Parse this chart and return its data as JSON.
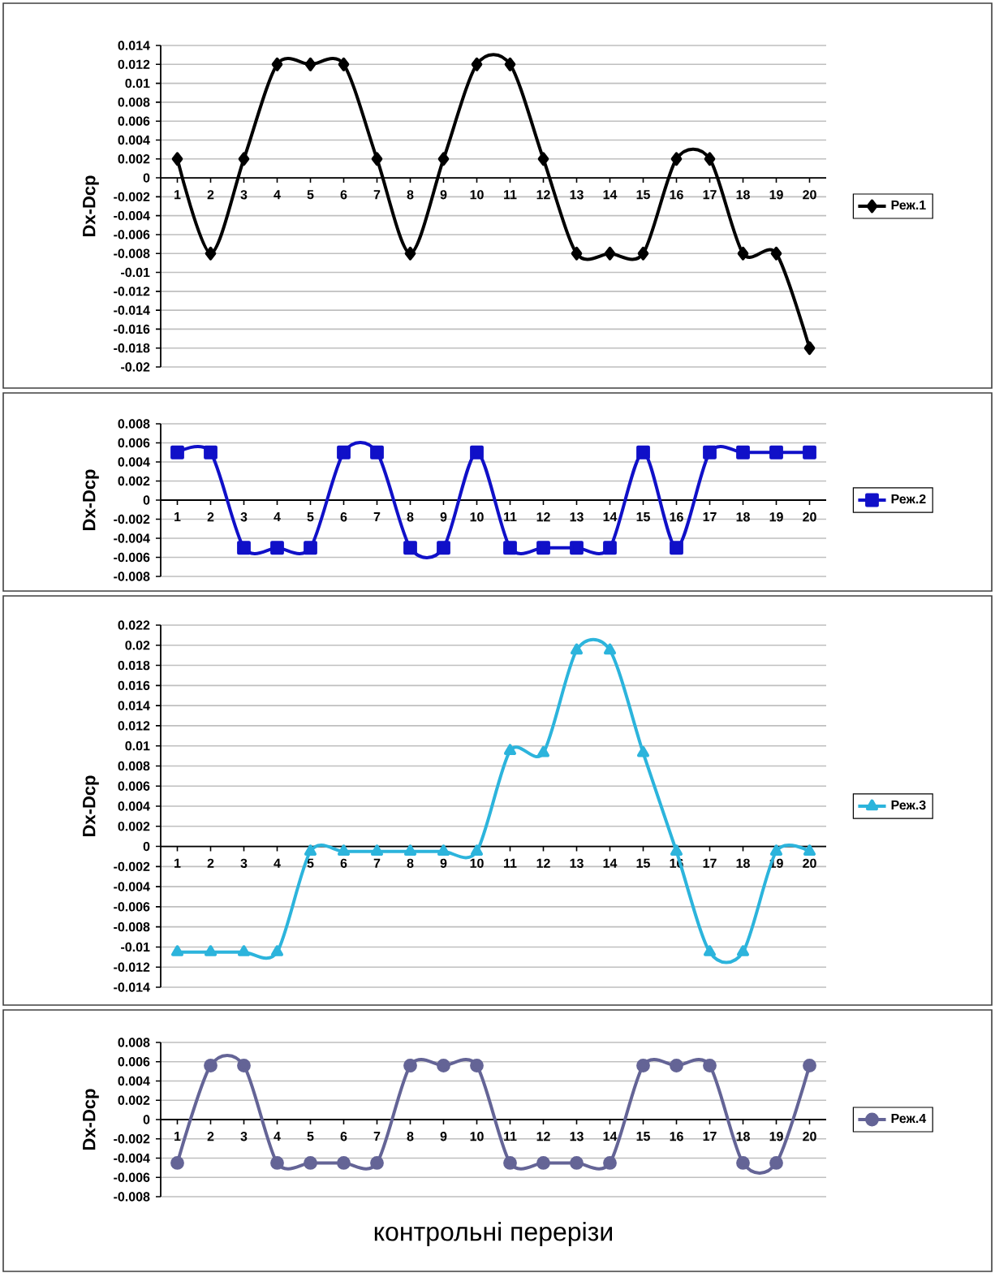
{
  "chart_data": [
    {
      "type": "line",
      "ylabel": "Dx-Dср",
      "categories": [
        "1",
        "2",
        "3",
        "4",
        "5",
        "6",
        "7",
        "8",
        "9",
        "10",
        "11",
        "12",
        "13",
        "14",
        "15",
        "16",
        "17",
        "18",
        "19",
        "20"
      ],
      "series": [
        {
          "name": "Реж.1",
          "color": "#000000",
          "values": [
            0.002,
            -0.008,
            0.002,
            0.012,
            0.012,
            0.012,
            0.002,
            -0.008,
            0.002,
            0.012,
            0.012,
            0.002,
            -0.008,
            -0.008,
            -0.008,
            0.002,
            0.002,
            -0.008,
            -0.008,
            -0.018
          ]
        }
      ],
      "ylim": [
        -0.02,
        0.014
      ],
      "yticks": [
        -0.02,
        -0.018,
        -0.016,
        -0.014,
        -0.012,
        -0.01,
        -0.008,
        -0.006,
        -0.004,
        -0.002,
        0,
        0.002,
        0.004,
        0.006,
        0.008,
        0.01,
        0.012,
        0.014
      ],
      "grid": "y",
      "legend": "right",
      "marker": "diamond"
    },
    {
      "type": "line",
      "ylabel": "Dx-Dср",
      "categories": [
        "1",
        "2",
        "3",
        "4",
        "5",
        "6",
        "7",
        "8",
        "9",
        "10",
        "11",
        "12",
        "13",
        "14",
        "15",
        "16",
        "17",
        "18",
        "19",
        "20"
      ],
      "series": [
        {
          "name": "Реж.2",
          "color": "#1010c8",
          "values": [
            0.005,
            0.005,
            -0.005,
            -0.005,
            -0.005,
            0.005,
            0.005,
            -0.005,
            -0.005,
            0.005,
            -0.005,
            -0.005,
            -0.005,
            -0.005,
            0.005,
            -0.005,
            0.005,
            0.005,
            0.005,
            0.005
          ]
        }
      ],
      "ylim": [
        -0.008,
        0.008
      ],
      "yticks": [
        -0.008,
        -0.006,
        -0.004,
        -0.002,
        0,
        0.002,
        0.004,
        0.006,
        0.008
      ],
      "grid": "y",
      "legend": "right",
      "marker": "square"
    },
    {
      "type": "line",
      "ylabel": "Dx-Dср",
      "categories": [
        "1",
        "2",
        "3",
        "4",
        "5",
        "6",
        "7",
        "8",
        "9",
        "10",
        "11",
        "12",
        "13",
        "14",
        "15",
        "16",
        "17",
        "18",
        "19",
        "20"
      ],
      "series": [
        {
          "name": "Реж.3",
          "color": "#2cb4dc",
          "values": [
            -0.0105,
            -0.0105,
            -0.0105,
            -0.0105,
            -0.0005,
            -0.0005,
            -0.0005,
            -0.0005,
            -0.0005,
            -0.0005,
            0.0095,
            0.0093,
            0.0195,
            0.0195,
            0.0093,
            -0.0005,
            -0.0105,
            -0.0105,
            -0.0005,
            -0.0005
          ]
        }
      ],
      "ylim": [
        -0.014,
        0.022
      ],
      "yticks": [
        -0.014,
        -0.012,
        -0.01,
        -0.008,
        -0.006,
        -0.004,
        -0.002,
        0,
        0.002,
        0.004,
        0.006,
        0.008,
        0.01,
        0.012,
        0.014,
        0.016,
        0.018,
        0.02,
        0.022
      ],
      "grid": "y",
      "legend": "right",
      "marker": "triangle"
    },
    {
      "type": "line",
      "ylabel": "Dx-Dср",
      "xlabel": "контрольні перерізи",
      "categories": [
        "1",
        "2",
        "3",
        "4",
        "5",
        "6",
        "7",
        "8",
        "9",
        "10",
        "11",
        "12",
        "13",
        "14",
        "15",
        "16",
        "17",
        "18",
        "19",
        "20"
      ],
      "series": [
        {
          "name": "Реж.4",
          "color": "#646496",
          "values": [
            -0.0045,
            0.0056,
            0.0056,
            -0.0045,
            -0.0045,
            -0.0045,
            -0.0045,
            0.0056,
            0.0056,
            0.0056,
            -0.0045,
            -0.0045,
            -0.0045,
            -0.0045,
            0.0056,
            0.0056,
            0.0056,
            -0.0045,
            -0.0045,
            0.0056
          ]
        }
      ],
      "ylim": [
        -0.008,
        0.008
      ],
      "yticks": [
        -0.008,
        -0.006,
        -0.004,
        -0.002,
        0,
        0.002,
        0.004,
        0.006,
        0.008
      ],
      "grid": "y",
      "legend": "right",
      "marker": "circle"
    }
  ]
}
